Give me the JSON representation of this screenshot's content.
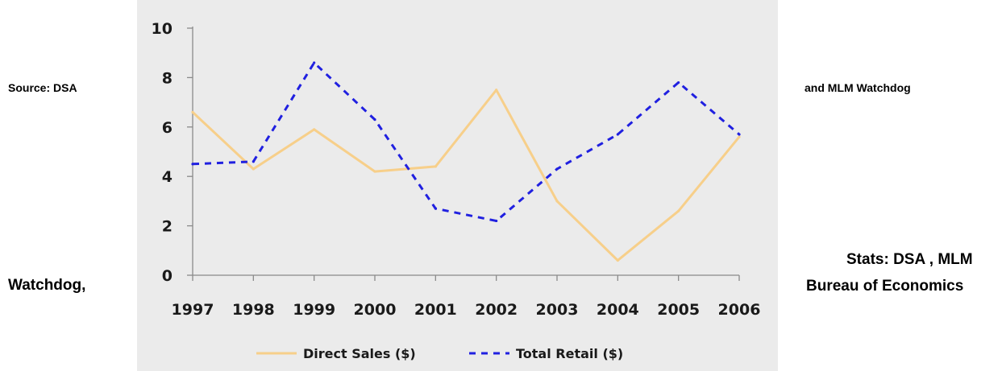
{
  "annotations": {
    "source_left": "Source: DSA",
    "source_right": "and MLM Watchdog",
    "watchdog_left": "Watchdog,",
    "stats_line1": "Stats: DSA , MLM",
    "stats_line2": "Bureau of Economics"
  },
  "chart_data": {
    "type": "line",
    "title": "",
    "xlabel": "",
    "ylabel": "",
    "x": [
      "1997",
      "1998",
      "1999",
      "2000",
      "2001",
      "2002",
      "2003",
      "2004",
      "2005",
      "2006"
    ],
    "ylim": [
      0,
      10
    ],
    "yticks": [
      "0",
      "2",
      "4",
      "6",
      "8",
      "10"
    ],
    "grid": false,
    "legend_position": "bottom",
    "series": [
      {
        "name": "Direct Sales ($)",
        "values": [
          6.6,
          4.3,
          5.9,
          4.2,
          4.4,
          7.5,
          3.0,
          0.6,
          2.6,
          5.6
        ],
        "color": "#f7cf8a",
        "style": "solid"
      },
      {
        "name": "Total Retail ($)",
        "values": [
          4.5,
          4.6,
          8.6,
          6.3,
          2.7,
          2.2,
          4.3,
          5.7,
          7.8,
          5.7
        ],
        "color": "#2020e0",
        "style": "dashed"
      }
    ]
  }
}
